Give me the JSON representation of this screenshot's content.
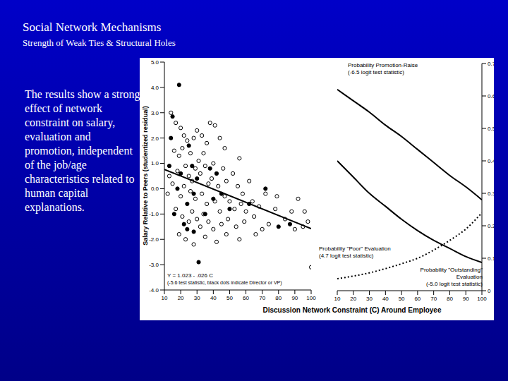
{
  "title": "Social Network Mechanisms",
  "subtitle": "Strength of Weak Ties & Structural Holes",
  "body": "The results show a strong effect of network constraint on salary, evaluation and promotion, independent of the job/age characteristics related to human capital explanations.",
  "x_label": "Discussion Network Constraint (C) Around Employee",
  "chart_data": [
    {
      "type": "scatter",
      "y_label": "Salary Relative to Peers (studentized residual)",
      "xlim": [
        10,
        100
      ],
      "xticks": [
        10,
        20,
        30,
        40,
        50,
        60,
        70,
        80,
        90,
        100
      ],
      "ylim": [
        -4,
        5
      ],
      "yticks": [
        {
          "value": -4,
          "label": "-4.0"
        },
        {
          "value": -3,
          "label": "-3.0"
        },
        {
          "value": -2,
          "label": "-2.0"
        },
        {
          "value": -1,
          "label": "-1.0"
        },
        {
          "value": 0,
          "label": "0.0"
        },
        {
          "value": 1,
          "label": "1.0"
        },
        {
          "value": 2,
          "label": "2.0"
        },
        {
          "value": 3,
          "label": "3.0"
        },
        {
          "value": 4,
          "label": "4.0"
        },
        {
          "value": 5,
          "label": "5.0"
        }
      ],
      "annotations": [
        "Y = 1.023 - .026 C",
        "(-5.6 test statistic, black dots indicate Director or VP)"
      ],
      "series": [
        {
          "marker": "open",
          "color": "#000000",
          "x": [
            14,
            17,
            20,
            22,
            24,
            16,
            19,
            21,
            26,
            28,
            30,
            33,
            36,
            38,
            41,
            44,
            31,
            34,
            29,
            23,
            18,
            13,
            15,
            25,
            27,
            32,
            35,
            37,
            39,
            43,
            46,
            48,
            52,
            55,
            58,
            20,
            22,
            26,
            29,
            33,
            36,
            41,
            44,
            47,
            50,
            53,
            57,
            60,
            64,
            68,
            17,
            21,
            25,
            27,
            30,
            32,
            34,
            37,
            40,
            45,
            49,
            54,
            59,
            65,
            70,
            74,
            78,
            84,
            90,
            95,
            98,
            19,
            23,
            28,
            35,
            42,
            48,
            56,
            66,
            100,
            96,
            92,
            79,
            72,
            62,
            56,
            47,
            40,
            12,
            88
          ],
          "y": [
            3,
            2.6,
            2.4,
            2.1,
            1.9,
            1.5,
            1.3,
            1.6,
            1.4,
            2,
            2.3,
            2.1,
            1.8,
            2.6,
            2.5,
            2,
            1.1,
            1.4,
            0.8,
            0.9,
            0.7,
            0.5,
            0.2,
            0.5,
            0.3,
            0.6,
            0.9,
            0.2,
            0.4,
            0.1,
            0.8,
            0.3,
            0.6,
            0.1,
            -0.2,
            -0.3,
            0.1,
            -0.1,
            -0.4,
            -0.2,
            -0.6,
            -0.5,
            -0.9,
            -0.3,
            -0.5,
            -0.8,
            -0.6,
            -0.9,
            -0.5,
            -0.7,
            -0.8,
            -1.1,
            -1.3,
            -0.9,
            -1.2,
            -1.5,
            -1,
            -1.3,
            -1.6,
            -1.4,
            -1.2,
            -1.5,
            -1.3,
            -1.1,
            -1.6,
            -1.4,
            -0.8,
            -1.2,
            -1.6,
            -1.5,
            -1.3,
            -1.8,
            -2,
            -2.2,
            -1.9,
            -2.1,
            -1.8,
            -2,
            -1.8,
            -3.1,
            -0.9,
            -0.4,
            -0.3,
            -0.2,
            0.3,
            1.2,
            1.6,
            1,
            -0.2,
            -0.9
          ]
        },
        {
          "marker": "filled",
          "color": "#000000",
          "x": [
            19,
            15,
            14,
            25,
            13,
            27,
            20,
            30,
            18,
            28,
            24,
            16,
            22,
            24,
            28,
            35,
            40,
            42,
            38,
            45,
            62,
            80,
            87,
            31,
            50,
            72
          ],
          "y": [
            4.1,
            2.85,
            2,
            1.7,
            0.9,
            0.9,
            0.6,
            0.4,
            0,
            -0.2,
            -0.6,
            -1,
            -1.4,
            -1.6,
            -1.7,
            -1,
            -0.4,
            0.6,
            0.8,
            -0.2,
            -0.6,
            -1.5,
            -1.4,
            -2.9,
            -0.8,
            0
          ]
        },
        {
          "type": "line",
          "color": "#000000",
          "x": [
            10,
            100
          ],
          "y": [
            0.763,
            -1.577
          ]
        }
      ]
    },
    {
      "type": "line",
      "x": [
        10,
        20,
        30,
        40,
        50,
        60,
        70,
        80,
        90,
        100
      ],
      "xlim": [
        10,
        100
      ],
      "xticks": [
        10,
        20,
        30,
        40,
        50,
        60,
        70,
        80,
        90,
        100
      ],
      "y2lim": [
        0,
        0.7
      ],
      "y2ticks": [
        0,
        0.1,
        0.2,
        0.3,
        0.4,
        0.5,
        0.6,
        0.7
      ],
      "series": [
        {
          "name": "Probability Promotion-Raise",
          "annotation": "(-6.5 logit test statistic)",
          "color": "#000000",
          "line_style": "solid",
          "axis": "y2",
          "values": [
            0.62,
            0.585,
            0.55,
            0.51,
            0.475,
            0.435,
            0.395,
            0.355,
            0.32,
            0.28
          ]
        },
        {
          "name": "Probability \"Outstanding\" Evaluation",
          "annotation": "(-5.0 logit test statistic)",
          "color": "#000000",
          "line_style": "solid",
          "axis": "y2",
          "values": [
            0.4,
            0.35,
            0.3,
            0.26,
            0.22,
            0.185,
            0.155,
            0.13,
            0.105,
            0.087
          ]
        },
        {
          "name": "Probability \"Poor\" Evaluation",
          "annotation": "(4.7 logit test statistic)",
          "color": "#000000",
          "line_style": "dotted",
          "axis": "y2",
          "values": [
            0.037,
            0.045,
            0.055,
            0.068,
            0.083,
            0.1,
            0.125,
            0.155,
            0.19,
            0.24
          ]
        }
      ]
    }
  ]
}
